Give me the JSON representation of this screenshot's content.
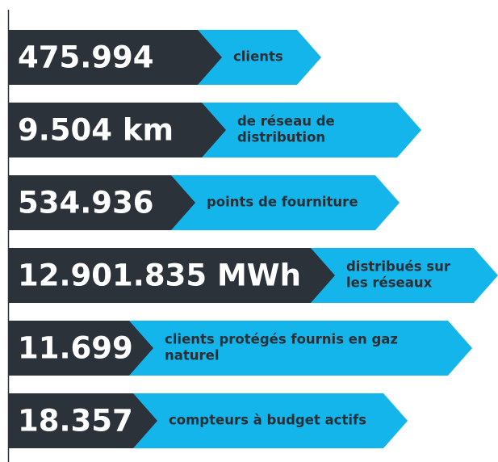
{
  "items": [
    {
      "value": "475.994",
      "label": [
        "clients"
      ]
    },
    {
      "value": "9.504 km",
      "label": [
        "de réseau de",
        "distribution"
      ]
    },
    {
      "value": "534.936",
      "label": [
        "points de fourniture"
      ]
    },
    {
      "value": "12.901.835 MWh",
      "label": [
        "distribués sur",
        "les réseaux"
      ]
    },
    {
      "value": "11.699",
      "label": [
        "clients protégés fournis en gaz",
        "naturel"
      ]
    },
    {
      "value": "18.357",
      "label": [
        "compteurs à budget actifs"
      ]
    }
  ]
}
